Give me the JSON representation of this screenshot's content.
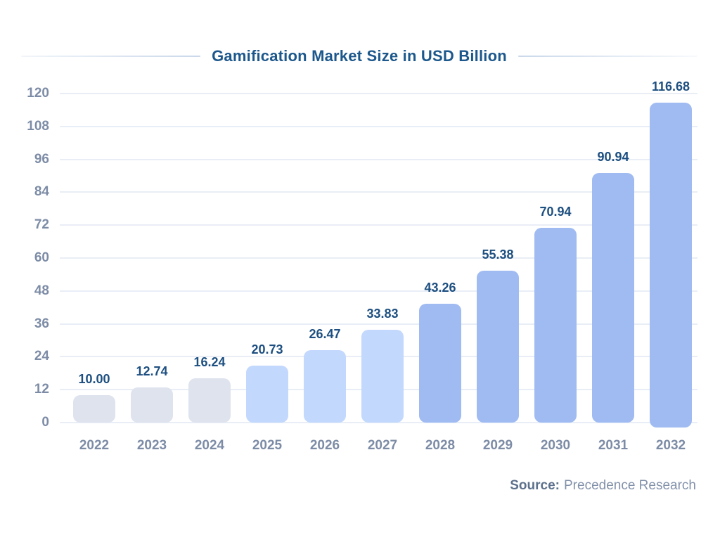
{
  "title": "Gamification Market Size in USD Billion",
  "source": {
    "label": "Source:",
    "name": "Precedence Research"
  },
  "colors": {
    "title_text": "#1d588c",
    "value_label_text": "#1d4f80",
    "axis_tick_text": "#7d8ca6",
    "gridline": "#e9eef6",
    "decorative_rule": "#cad8ea",
    "bar_past": "#dee3ee",
    "bar_near_term": "#c3d8fd",
    "bar_forecast": "#a0bbf2"
  },
  "chart_data": {
    "type": "bar",
    "title": "Gamification Market Size in USD Billion",
    "categories": [
      "2022",
      "2023",
      "2024",
      "2025",
      "2026",
      "2027",
      "2028",
      "2029",
      "2030",
      "2031",
      "2032"
    ],
    "values": [
      10.0,
      12.74,
      16.24,
      20.73,
      26.47,
      33.83,
      43.26,
      55.38,
      70.94,
      90.94,
      116.68
    ],
    "value_labels": [
      "10.00",
      "12.74",
      "16.24",
      "20.73",
      "26.47",
      "33.83",
      "43.26",
      "55.38",
      "70.94",
      "90.94",
      "116.68"
    ],
    "bar_colors": [
      "#dee3ee",
      "#dee3ee",
      "#dee3ee",
      "#c3d8fd",
      "#c3d8fd",
      "#c3d8fd",
      "#a0bbf2",
      "#a0bbf2",
      "#a0bbf2",
      "#a0bbf2",
      "#a0bbf2"
    ],
    "xlabel": "",
    "ylabel": "",
    "ylim": [
      0,
      120
    ],
    "yticks": [
      0,
      12,
      24,
      36,
      48,
      60,
      72,
      84,
      96,
      108,
      120
    ],
    "grid": true,
    "legend": false
  }
}
